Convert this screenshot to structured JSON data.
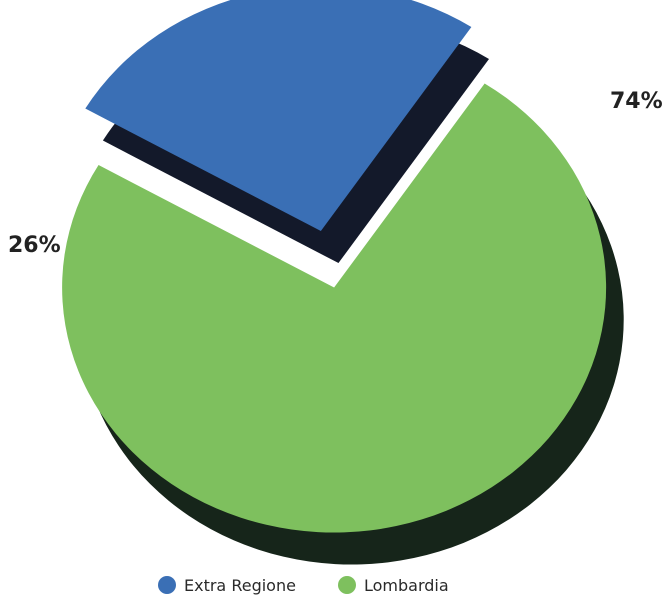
{
  "chart_data": {
    "type": "pie",
    "style": "3d-exploded",
    "title": "",
    "slices": [
      {
        "label": "Extra Regione",
        "value": 26,
        "value_label": "26%",
        "color": "#3a6fb5",
        "side_color": "#13192a"
      },
      {
        "label": "Lombardia",
        "value": 74,
        "value_label": "74%",
        "color": "#7ec05e",
        "side_color": "#16251a"
      }
    ],
    "legend": {
      "position": "bottom",
      "items": [
        "Extra Regione",
        "Lombardia"
      ]
    }
  }
}
